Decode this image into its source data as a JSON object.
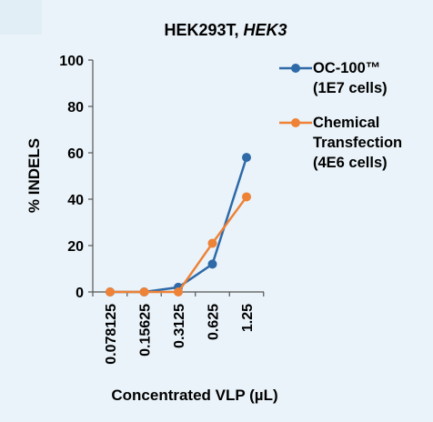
{
  "chart_data": {
    "type": "line",
    "title": "HEK293T, ",
    "title_italic": "HEK3",
    "xlabel": "Concentrated VLP (µL)",
    "ylabel": "% INDELS",
    "categories": [
      "0.078125",
      "0.15625",
      "0.3125",
      "0.625",
      "1.25"
    ],
    "ylim": [
      0,
      100
    ],
    "yticks": [
      0,
      20,
      40,
      60,
      80,
      100
    ],
    "grid": false,
    "legend_position": "right",
    "series": [
      {
        "name": "OC-100™ (1E7 cells)",
        "legend_lines": [
          "OC-100™",
          "(1E7 cells)"
        ],
        "color": "#2e6aa8",
        "values": [
          0,
          0,
          2,
          12,
          58
        ]
      },
      {
        "name": "Chemical Transfection (4E6 cells)",
        "legend_lines": [
          "Chemical",
          "Transfection",
          "(4E6 cells)"
        ],
        "color": "#ee8236",
        "values": [
          0,
          0,
          0,
          21,
          41
        ]
      }
    ]
  }
}
